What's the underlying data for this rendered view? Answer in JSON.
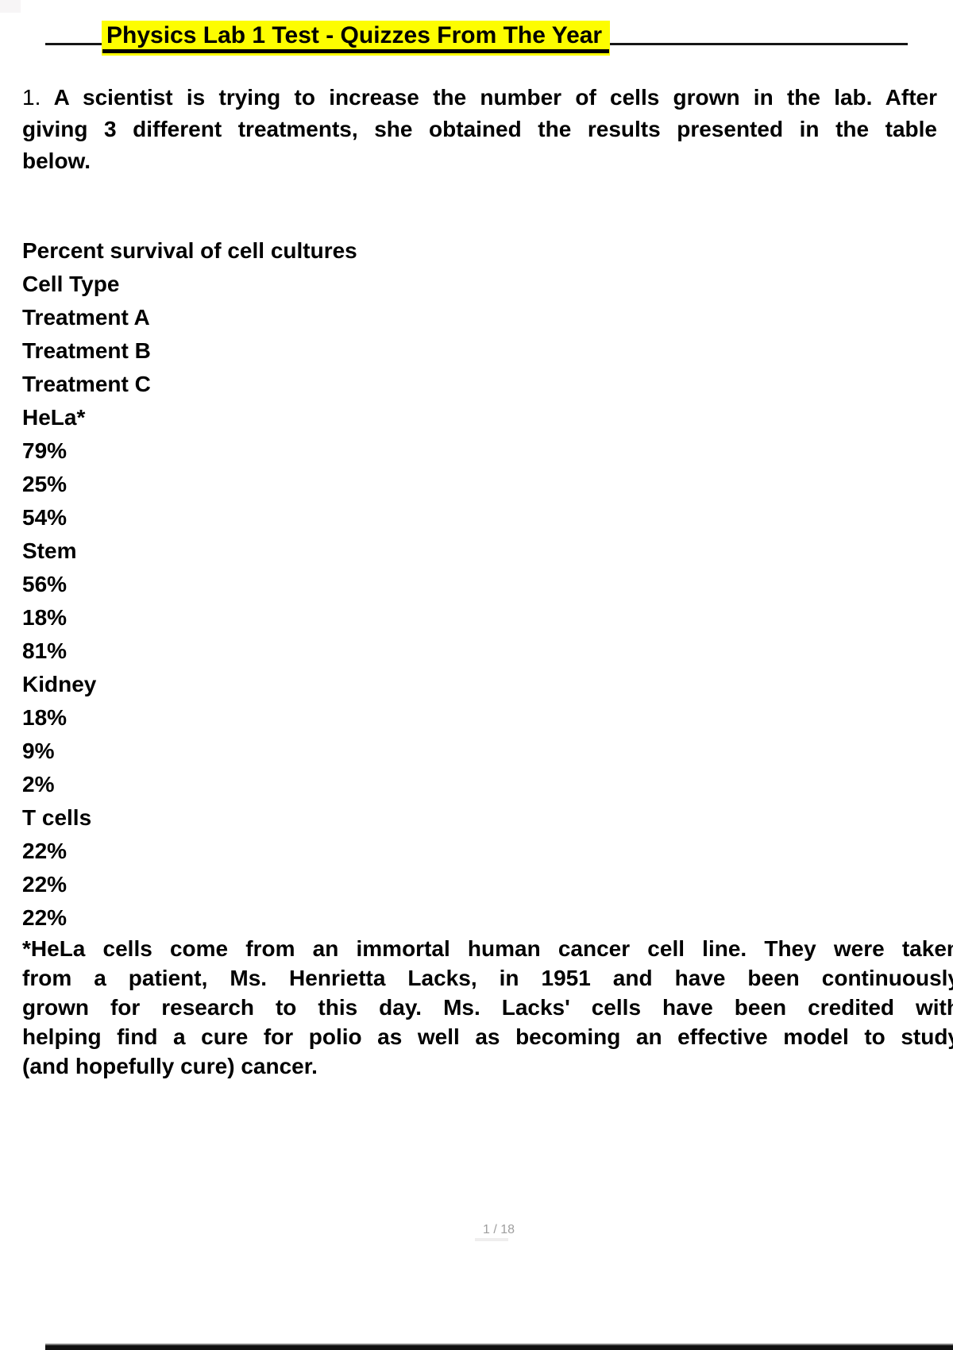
{
  "title": {
    "text": "Physics Lab 1 Test - Quizzes From The Year"
  },
  "question": {
    "number": "1.",
    "line1": "A scientist is trying to increase the number of cells grown in the lab. After",
    "line2": "giving 3 different treatments, she obtained the results presented in the table",
    "line3": "below."
  },
  "table_lines": [
    "Percent survival of cell cultures",
    "Cell Type",
    "Treatment A",
    "Treatment B",
    "Treatment C",
    "HeLa*",
    "79%",
    "25%",
    "54%",
    "Stem",
    "56%",
    "18%",
    "81%",
    "Kidney",
    "18%",
    "9%",
    "2%",
    "T cells",
    "22%",
    "22%",
    "22%"
  ],
  "footnote": {
    "line1": "*HeLa cells come from an immortal human cancer cell line. They were taken",
    "line2": "from a patient, Ms. Henrietta Lacks, in 1951 and have been continuously",
    "line3": "grown for research to this day. Ms. Lacks' cells have been credited with",
    "line4": "helping find a cure for polio as well as becoming an effective model to study",
    "line5": "(and hopefully cure) cancer."
  },
  "footer": {
    "page_indicator": "1 / 18"
  },
  "colors": {
    "highlight": "#fdfd00",
    "text": "#000000",
    "muted": "#9e9e9e"
  }
}
